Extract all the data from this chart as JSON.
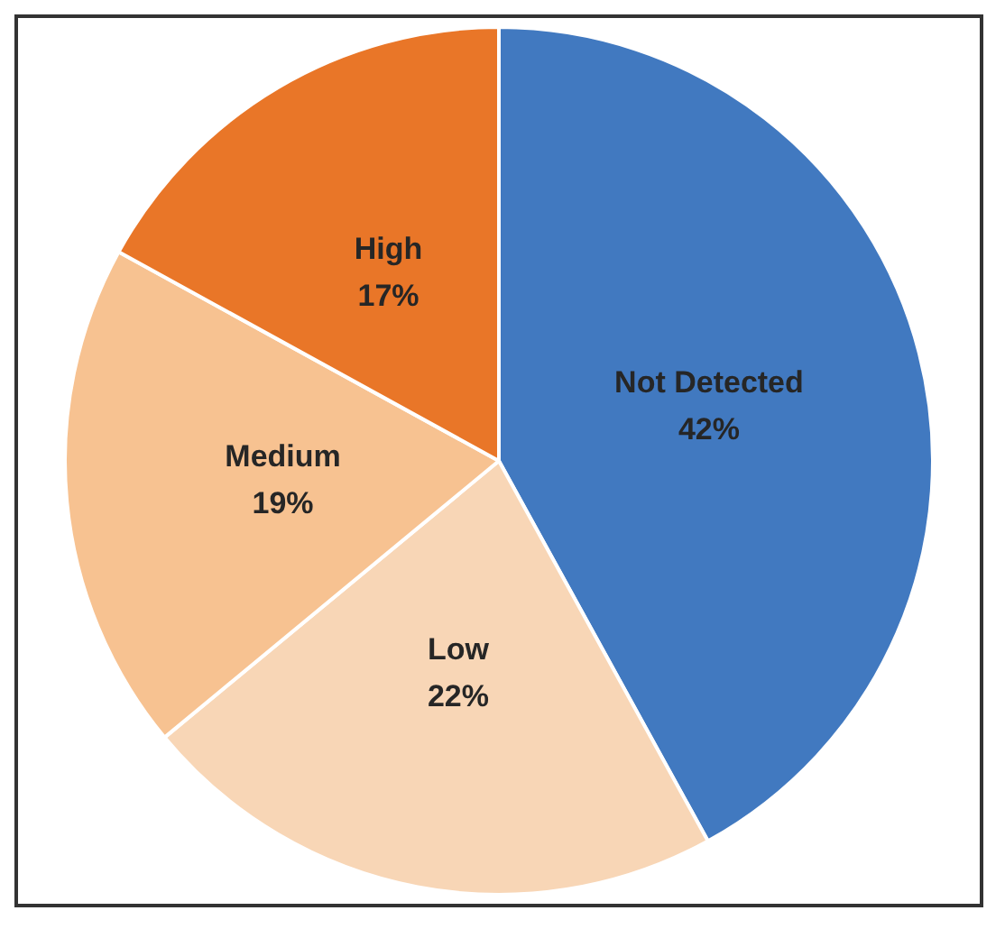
{
  "chart_data": {
    "type": "pie",
    "categories": [
      "Not Detected",
      "Low",
      "Medium",
      "High"
    ],
    "values": [
      42,
      22,
      19,
      17
    ],
    "colors": [
      "#4179c0",
      "#f8d6b6",
      "#f7c291",
      "#e97628"
    ],
    "value_labels": [
      "42%",
      "22%",
      "19%",
      "17%"
    ]
  }
}
